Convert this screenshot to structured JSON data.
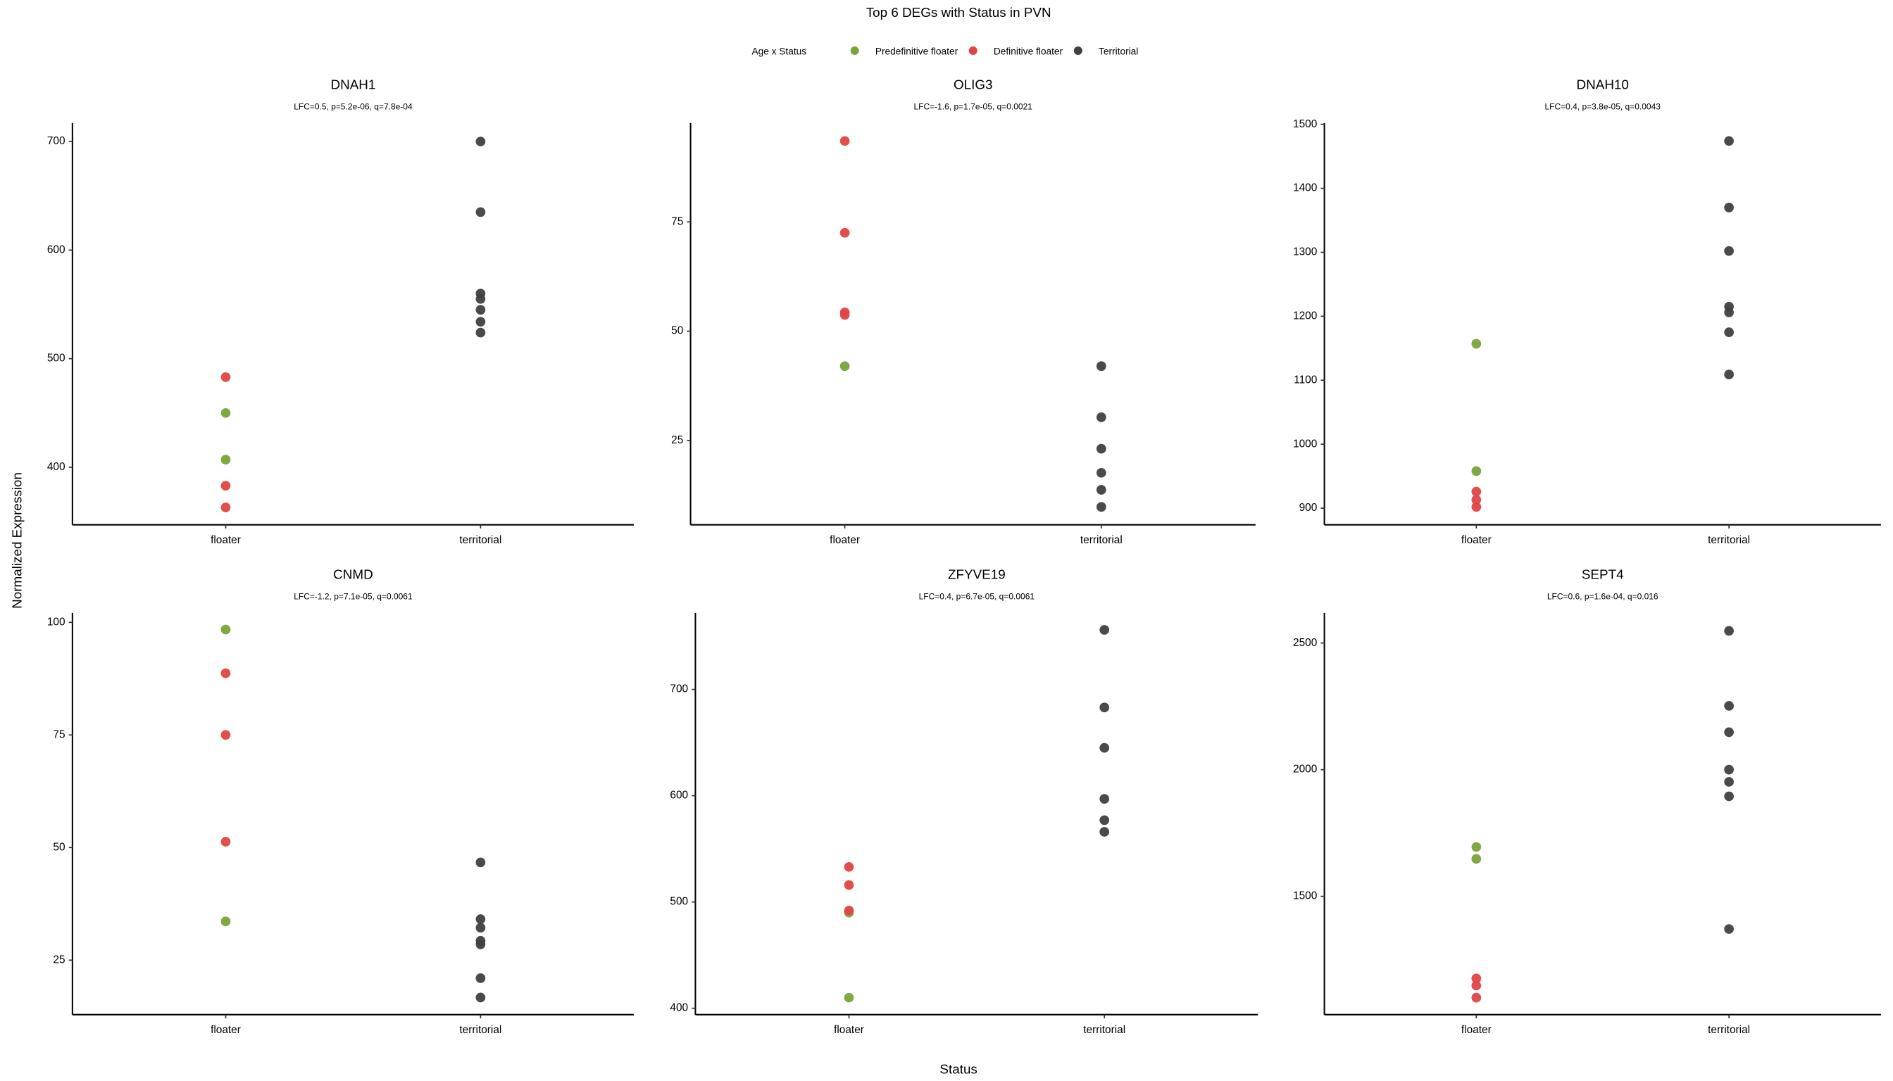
{
  "title": "Top 6 DEGs with Status in PVN",
  "legend_title": "Age x Status",
  "xlabel": "Status",
  "ylabel": "Normalized Expression",
  "chart_data": [
    {
      "type": "scatter",
      "title": "DNAH1",
      "subtitle": "LFC=0.5, p=5.2e-06, q=7.8e-04",
      "categories": [
        "floater",
        "territorial"
      ],
      "ylim": [
        347,
        717
      ],
      "yticks": [
        400,
        500,
        600,
        700
      ],
      "series": [
        {
          "name": "Predefinitive floater",
          "color": "#7aa33a",
          "x": [
            "floater",
            "floater"
          ],
          "values": [
            450,
            407
          ]
        },
        {
          "name": "Definitive floater",
          "color": "#e04444",
          "x": [
            "floater",
            "floater",
            "floater"
          ],
          "values": [
            483,
            383,
            363
          ]
        },
        {
          "name": "Territorial",
          "color": "#404040",
          "x": [
            "territorial",
            "territorial",
            "territorial",
            "territorial",
            "territorial",
            "territorial",
            "territorial"
          ],
          "values": [
            700,
            635,
            560,
            555,
            545,
            534,
            524
          ]
        }
      ]
    },
    {
      "type": "scatter",
      "title": "OLIG3",
      "subtitle": "LFC=-1.6, p=1.7e-05, q=0.0021",
      "categories": [
        "floater",
        "territorial"
      ],
      "ylim": [
        5.7,
        97.6
      ],
      "yticks": [
        25,
        50,
        75
      ],
      "series": [
        {
          "name": "Predefinitive floater",
          "color": "#7aa33a",
          "x": [
            "floater"
          ],
          "values": [
            42
          ]
        },
        {
          "name": "Definitive floater",
          "color": "#e04444",
          "x": [
            "floater",
            "floater",
            "floater",
            "floater"
          ],
          "values": [
            93.5,
            72.5,
            54.3,
            53.7
          ]
        },
        {
          "name": "Territorial",
          "color": "#404040",
          "x": [
            "territorial",
            "territorial",
            "territorial",
            "territorial",
            "territorial",
            "territorial"
          ],
          "values": [
            42,
            30.3,
            23.1,
            17.6,
            13.7,
            9.8
          ]
        }
      ]
    },
    {
      "type": "scatter",
      "title": "DNAH10",
      "subtitle": "LFC=0.4, p=3.8e-05, q=0.0043",
      "categories": [
        "floater",
        "territorial"
      ],
      "ylim": [
        874,
        1502
      ],
      "yticks": [
        900,
        1000,
        1100,
        1200,
        1300,
        1400,
        1500
      ],
      "series": [
        {
          "name": "Predefinitive floater",
          "color": "#7aa33a",
          "x": [
            "floater",
            "floater"
          ],
          "values": [
            1157,
            958
          ]
        },
        {
          "name": "Definitive floater",
          "color": "#e04444",
          "x": [
            "floater",
            "floater",
            "floater"
          ],
          "values": [
            926,
            913,
            902
          ]
        },
        {
          "name": "Territorial",
          "color": "#404040",
          "x": [
            "territorial",
            "territorial",
            "territorial",
            "territorial",
            "territorial",
            "territorial",
            "territorial"
          ],
          "values": [
            1474,
            1370,
            1302,
            1215,
            1206,
            1175,
            1109
          ]
        }
      ]
    },
    {
      "type": "scatter",
      "title": "CNMD",
      "subtitle": "LFC=-1.2, p=7.1e-05, q=0.0061",
      "categories": [
        "floater",
        "territorial"
      ],
      "ylim": [
        12.9,
        102.1
      ],
      "yticks": [
        25,
        50,
        75,
        100
      ],
      "series": [
        {
          "name": "Predefinitive floater",
          "color": "#7aa33a",
          "x": [
            "floater",
            "floater"
          ],
          "values": [
            98.4,
            33.6
          ]
        },
        {
          "name": "Definitive floater",
          "color": "#e04444",
          "x": [
            "floater",
            "floater",
            "floater"
          ],
          "values": [
            88.7,
            75,
            51.3
          ]
        },
        {
          "name": "Territorial",
          "color": "#404040",
          "x": [
            "territorial",
            "territorial",
            "territorial",
            "territorial",
            "territorial",
            "territorial",
            "territorial"
          ],
          "values": [
            46.7,
            34.1,
            32.2,
            29.3,
            28.5,
            21,
            16.7
          ]
        }
      ]
    },
    {
      "type": "scatter",
      "title": "ZFYVE19",
      "subtitle": "LFC=0.4, p=6.7e-05, q=0.0061",
      "categories": [
        "floater",
        "territorial"
      ],
      "ylim": [
        394,
        772
      ],
      "yticks": [
        400,
        500,
        600,
        700
      ],
      "series": [
        {
          "name": "Predefinitive floater",
          "color": "#7aa33a",
          "x": [
            "floater",
            "floater"
          ],
          "values": [
            490,
            410
          ]
        },
        {
          "name": "Definitive floater",
          "color": "#e04444",
          "x": [
            "floater",
            "floater",
            "floater"
          ],
          "values": [
            533,
            516,
            492
          ]
        },
        {
          "name": "Territorial",
          "color": "#404040",
          "x": [
            "territorial",
            "territorial",
            "territorial",
            "territorial",
            "territorial",
            "territorial"
          ],
          "values": [
            756,
            683,
            645,
            597,
            577,
            566
          ]
        }
      ]
    },
    {
      "type": "scatter",
      "title": "SEPT4",
      "subtitle": "LFC=0.6, p=1.6e-04, q=0.016",
      "categories": [
        "floater",
        "territorial"
      ],
      "ylim": [
        1033,
        2619
      ],
      "yticks": [
        1500,
        2000,
        2500
      ],
      "series": [
        {
          "name": "Predefinitive floater",
          "color": "#7aa33a",
          "x": [
            "floater",
            "floater"
          ],
          "values": [
            1695,
            1648
          ]
        },
        {
          "name": "Definitive floater",
          "color": "#e04444",
          "x": [
            "floater",
            "floater",
            "floater"
          ],
          "values": [
            1176,
            1148,
            1100
          ]
        },
        {
          "name": "Territorial",
          "color": "#404040",
          "x": [
            "territorial",
            "territorial",
            "territorial",
            "territorial",
            "territorial",
            "territorial",
            "territorial"
          ],
          "values": [
            2548,
            2252,
            2148,
            2000,
            1952,
            1895,
            1371
          ]
        }
      ]
    }
  ]
}
